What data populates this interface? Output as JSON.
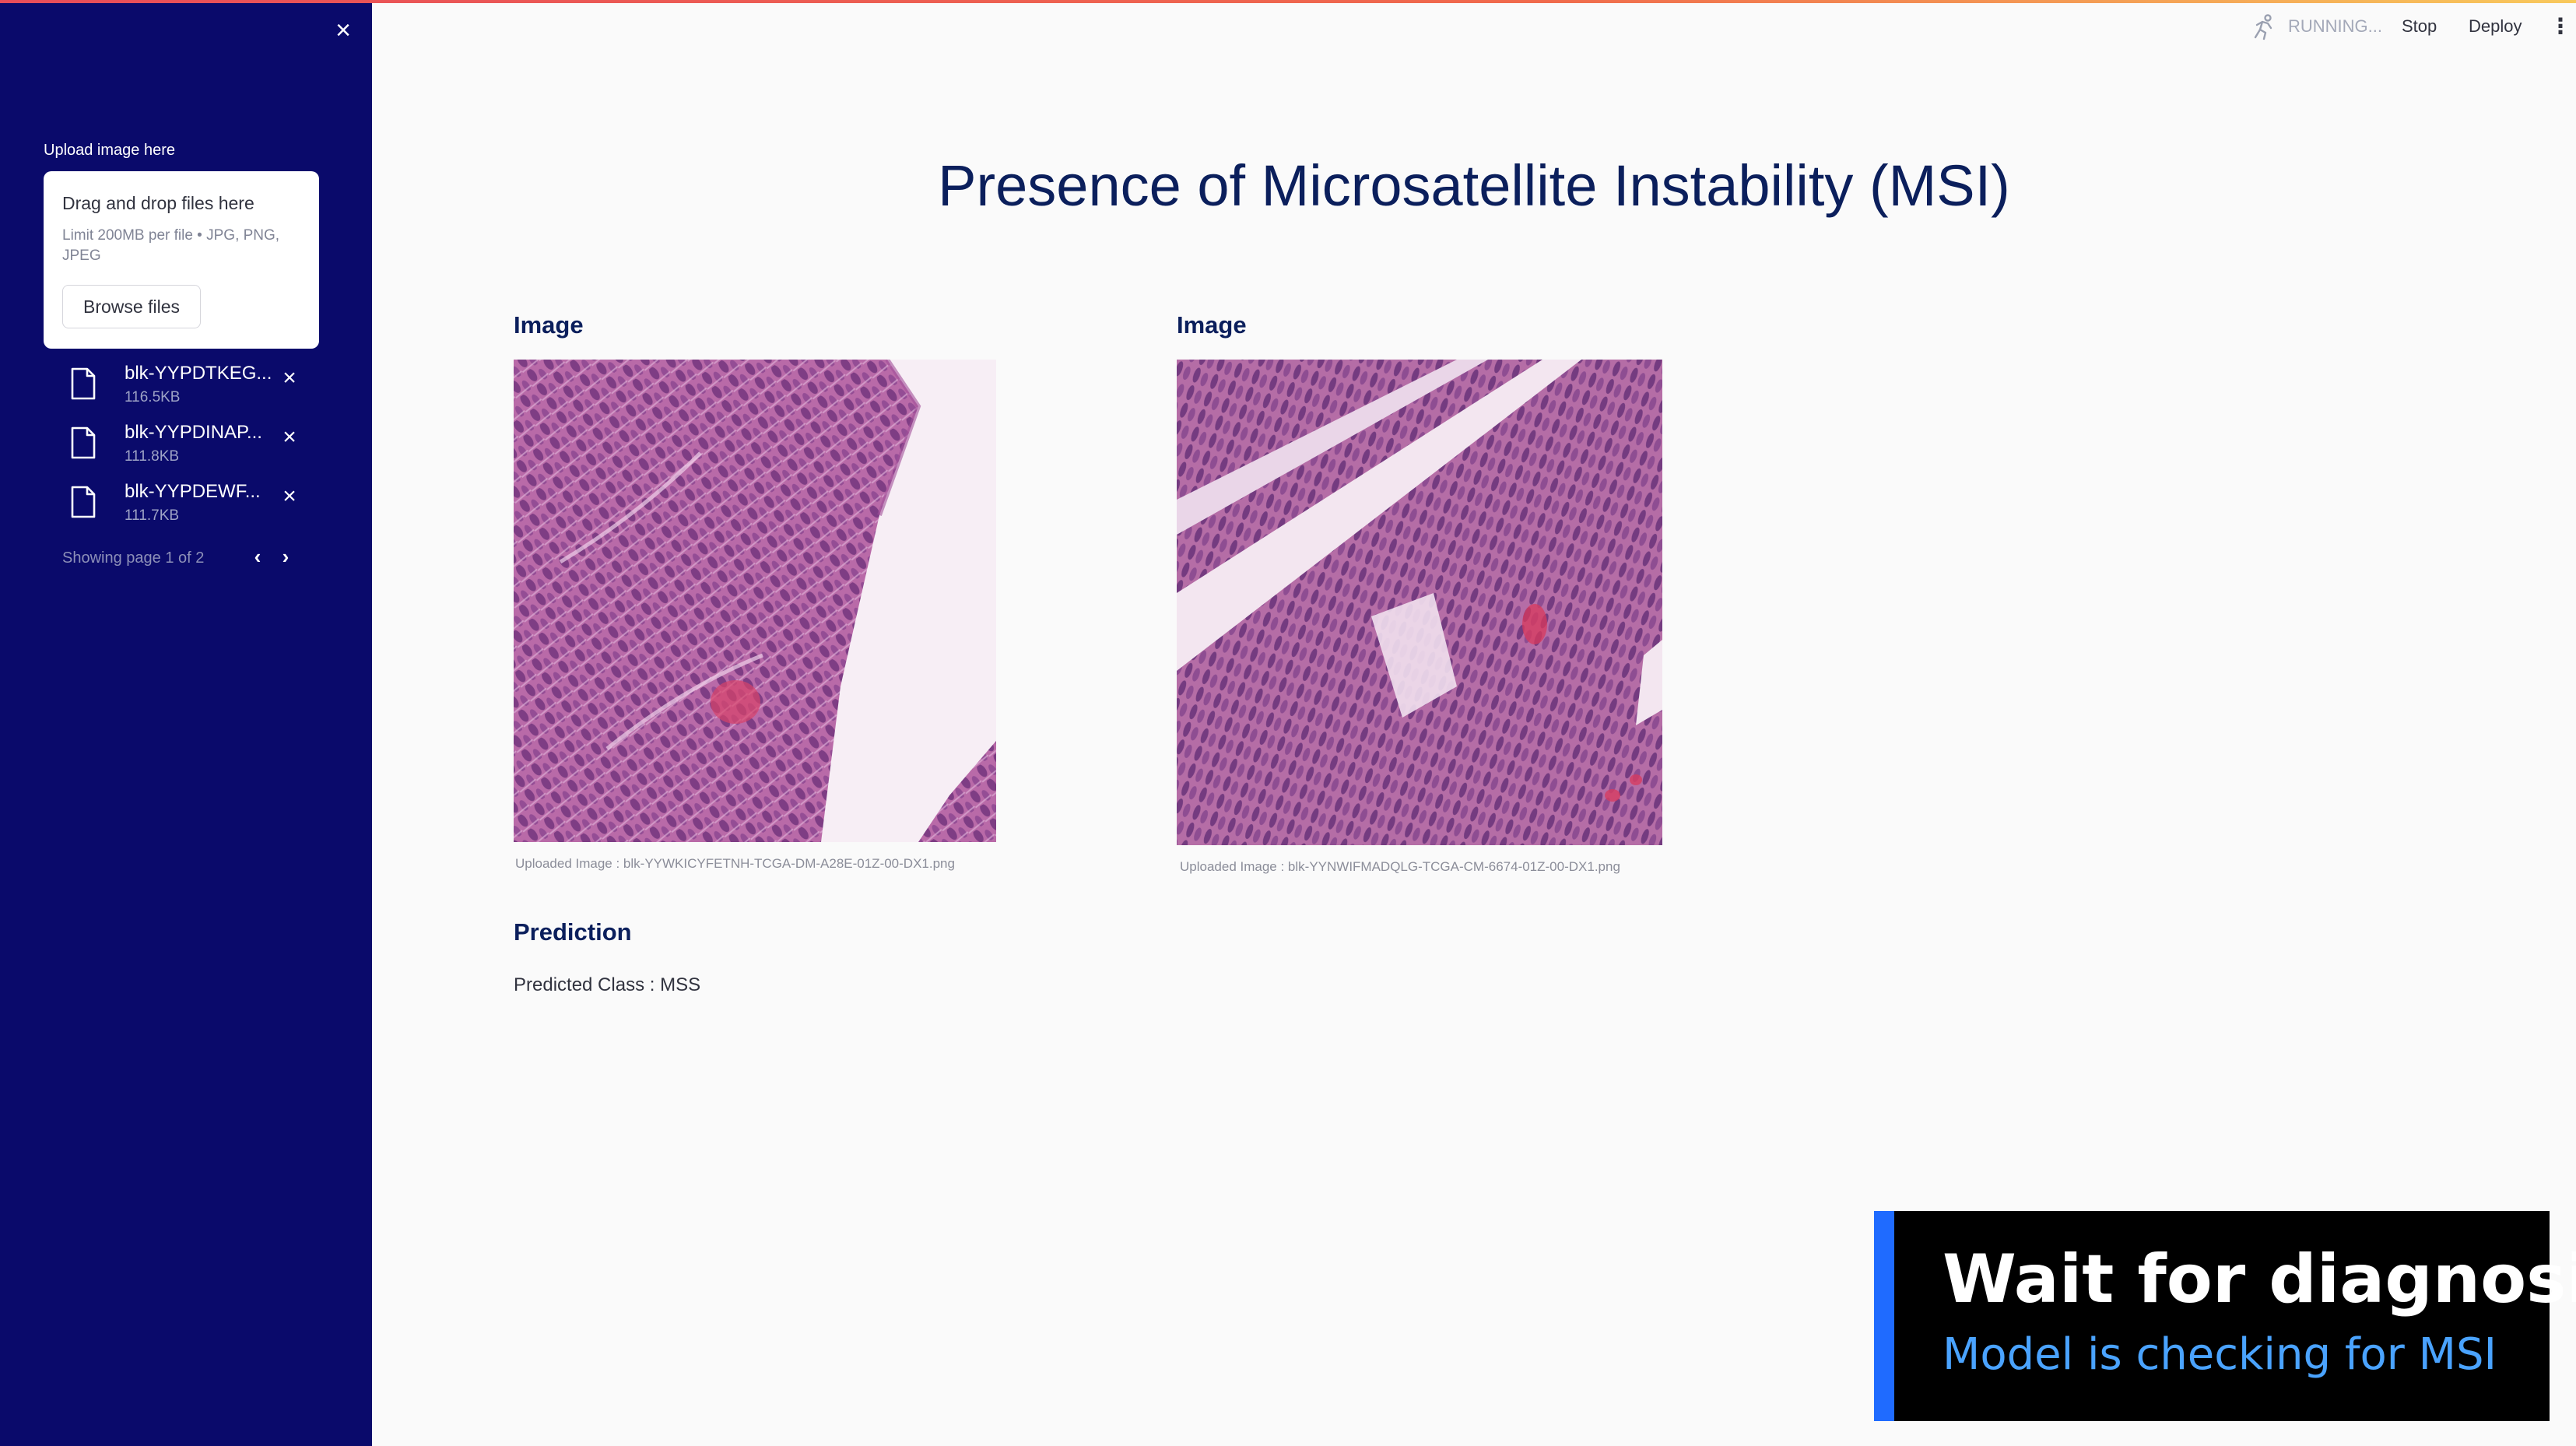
{
  "header": {
    "status": "RUNNING...",
    "stop_label": "Stop",
    "deploy_label": "Deploy",
    "menu_icon": "kebab-menu-icon"
  },
  "sidebar": {
    "upload_label": "Upload image here",
    "dropzone": {
      "title": "Drag and drop files here",
      "limit": "Limit 200MB per file • JPG, PNG, JPEG",
      "browse_label": "Browse files"
    },
    "files": [
      {
        "name": "blk-YYPDTKEG...",
        "size": "116.5KB"
      },
      {
        "name": "blk-YYPDINAP...",
        "size": "111.8KB"
      },
      {
        "name": "blk-YYPDEWF...",
        "size": "111.7KB"
      }
    ],
    "pager_text": "Showing page 1 of 2"
  },
  "main": {
    "title": "Presence of Microsatellite Instability (MSI)",
    "images": [
      {
        "heading": "Image",
        "caption": "Uploaded Image : blk-YYWKICYFETNH-TCGA-DM-A28E-01Z-00-DX1.png"
      },
      {
        "heading": "Image",
        "caption": "Uploaded Image : blk-YYNWIFMADQLG-TCGA-CM-6674-01Z-00-DX1.png"
      }
    ],
    "prediction": {
      "heading": "Prediction",
      "text": "Predicted Class : MSS"
    }
  },
  "overlay": {
    "title": "Wait for diagnosis",
    "subtitle": "Model is checking for MSI"
  },
  "colors": {
    "sidebar_bg": "#0a0a6b",
    "accent": "#1f6bff",
    "title": "#0b1f5c"
  }
}
